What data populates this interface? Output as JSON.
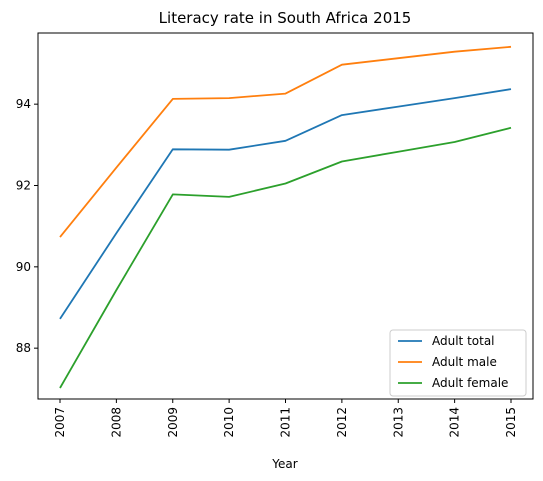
{
  "chart_data": {
    "type": "line",
    "title": "Literacy rate in South Africa 2015",
    "xlabel": "Year",
    "ylabel": "",
    "x": [
      "2007",
      "2008",
      "2009",
      "2010",
      "2011",
      "2012",
      "2013",
      "2014",
      "2015"
    ],
    "ylim": [
      86.75,
      95.75
    ],
    "yticks": [
      88,
      90,
      92,
      94
    ],
    "series": [
      {
        "name": "Adult total",
        "color": "#1f77b4",
        "values": [
          88.72,
          90.83,
          92.89,
          92.88,
          93.1,
          93.73,
          93.94,
          94.15,
          94.37
        ]
      },
      {
        "name": "Adult male",
        "color": "#ff7f0e",
        "values": [
          90.73,
          92.44,
          94.13,
          94.15,
          94.26,
          94.97,
          95.13,
          95.29,
          95.41
        ]
      },
      {
        "name": "Adult female",
        "color": "#2ca02c",
        "values": [
          87.02,
          89.43,
          91.78,
          91.72,
          92.05,
          92.59,
          92.83,
          93.07,
          93.42
        ]
      }
    ],
    "legend_position": "lower-right",
    "grid": false
  }
}
